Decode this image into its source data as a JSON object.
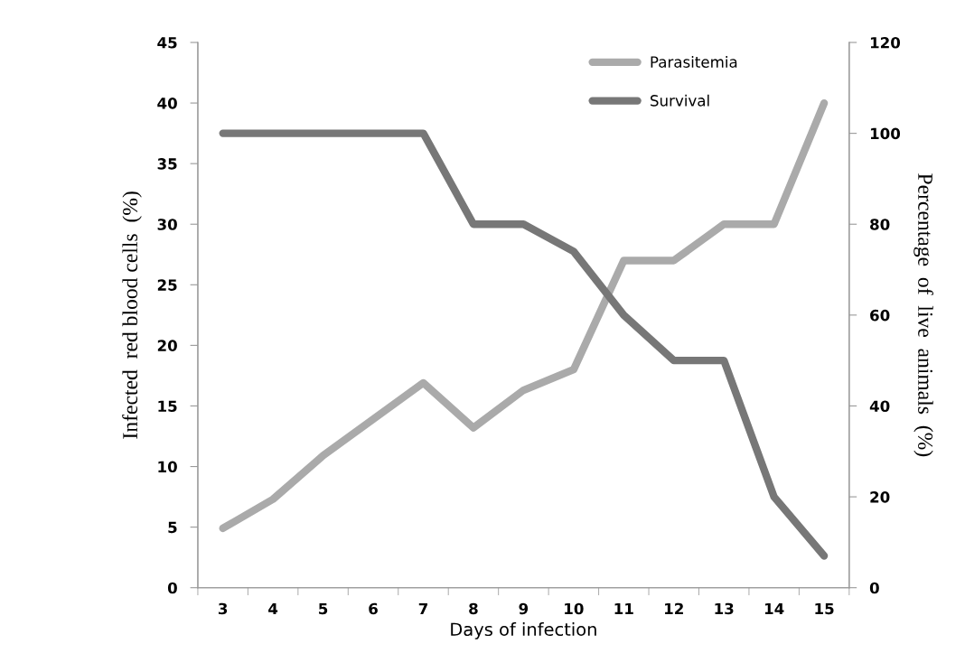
{
  "chart_data": {
    "type": "line",
    "xlabel": "Days of infection",
    "ylabel": "Infected  red blood cells  (%)",
    "y2label": "Percentage  of  live  animals  (%)",
    "categories": [
      "3",
      "4",
      "5",
      "6",
      "7",
      "8",
      "9",
      "10",
      "11",
      "12",
      "13",
      "14",
      "15"
    ],
    "series": [
      {
        "name": "Parasitemia",
        "color": "#aaaaaa",
        "values": [
          4.9,
          7.3,
          10.9,
          13.9,
          16.9,
          13.2,
          16.3,
          18.0,
          27.0,
          27.0,
          30.0,
          30.0,
          40.0
        ]
      },
      {
        "name": "Survival",
        "color": "#777777",
        "axis": "y2",
        "values": [
          100,
          100,
          100,
          100,
          100,
          80,
          80,
          74,
          60,
          50,
          50,
          20,
          7
        ]
      }
    ],
    "ylim": [
      0,
      45
    ],
    "yticks": [
      0,
      5,
      10,
      15,
      20,
      25,
      30,
      35,
      40,
      45
    ],
    "y2lim": [
      0,
      120
    ],
    "y2ticks": [
      0,
      20,
      40,
      60,
      80,
      100,
      120
    ],
    "grid": false,
    "legend": "top right",
    "marker": "none",
    "line_style": "solid"
  }
}
